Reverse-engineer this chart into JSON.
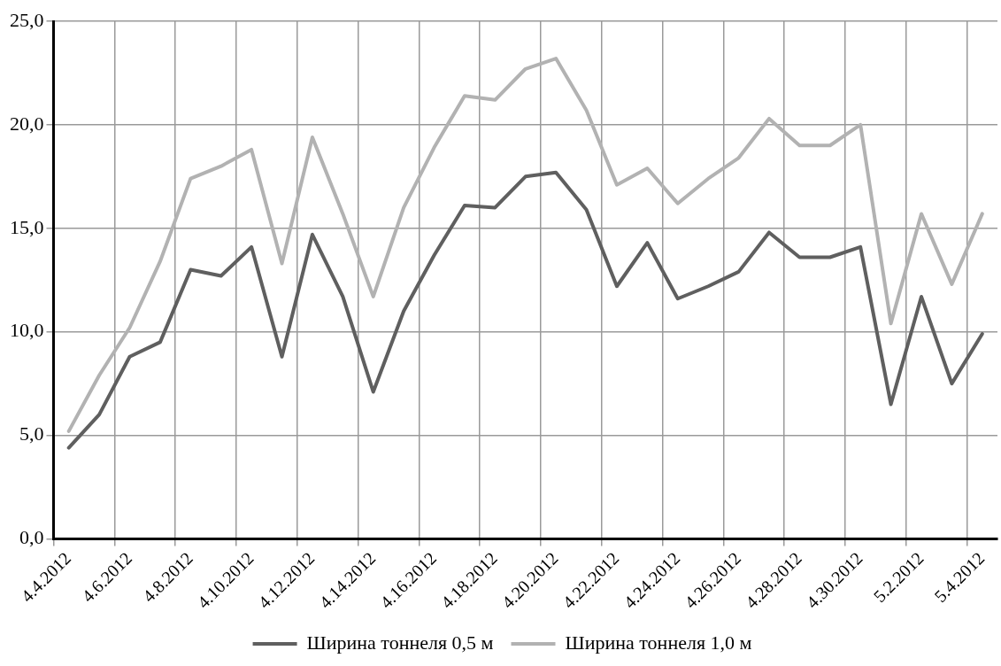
{
  "chart_data": {
    "type": "line",
    "categories": [
      "4.4.2012",
      null,
      "4.6.2012",
      null,
      "4.8.2012",
      null,
      "4.10.2012",
      null,
      "4.12.2012",
      null,
      "4.14.2012",
      null,
      "4.16.2012",
      null,
      "4.18.2012",
      null,
      "4.20.2012",
      null,
      "4.22.2012",
      null,
      "4.24.2012",
      null,
      "4.26.2012",
      null,
      "4.28.2012",
      null,
      "4.30.2012",
      null,
      "5.2.2012",
      null,
      "5.4.2012"
    ],
    "series": [
      {
        "name": "Ширина тоннеля 0,5 м",
        "color": "#5f5f5f",
        "values": [
          4.4,
          6.0,
          8.8,
          9.5,
          13.0,
          12.7,
          14.1,
          8.8,
          14.7,
          11.7,
          7.1,
          11.0,
          13.7,
          16.1,
          16.0,
          17.5,
          17.7,
          15.9,
          12.2,
          14.3,
          11.6,
          12.2,
          12.9,
          14.8,
          13.6,
          13.6,
          14.1,
          6.5,
          11.7,
          7.5,
          9.9
        ]
      },
      {
        "name": "Ширина тоннеля 1,0 м",
        "color": "#b2b2b2",
        "values": [
          5.2,
          7.9,
          10.2,
          13.4,
          17.4,
          18.0,
          18.8,
          13.3,
          19.4,
          15.7,
          11.7,
          16.0,
          18.9,
          21.4,
          21.2,
          22.7,
          23.2,
          20.7,
          17.1,
          17.9,
          16.2,
          17.4,
          18.4,
          20.3,
          19.0,
          19.0,
          20.0,
          10.4,
          15.7,
          12.3,
          15.7
        ]
      }
    ],
    "ylim": [
      0,
      25
    ],
    "yticks": [
      {
        "value": 0,
        "label": "0,0"
      },
      {
        "value": 5,
        "label": "5,0"
      },
      {
        "value": 10,
        "label": "10,0"
      },
      {
        "value": 15,
        "label": "15,0"
      },
      {
        "value": 20,
        "label": "20,0"
      },
      {
        "value": 25,
        "label": "25,0"
      }
    ],
    "grid": true,
    "legend": "bottom",
    "marker": "none",
    "line_style": "solid"
  }
}
